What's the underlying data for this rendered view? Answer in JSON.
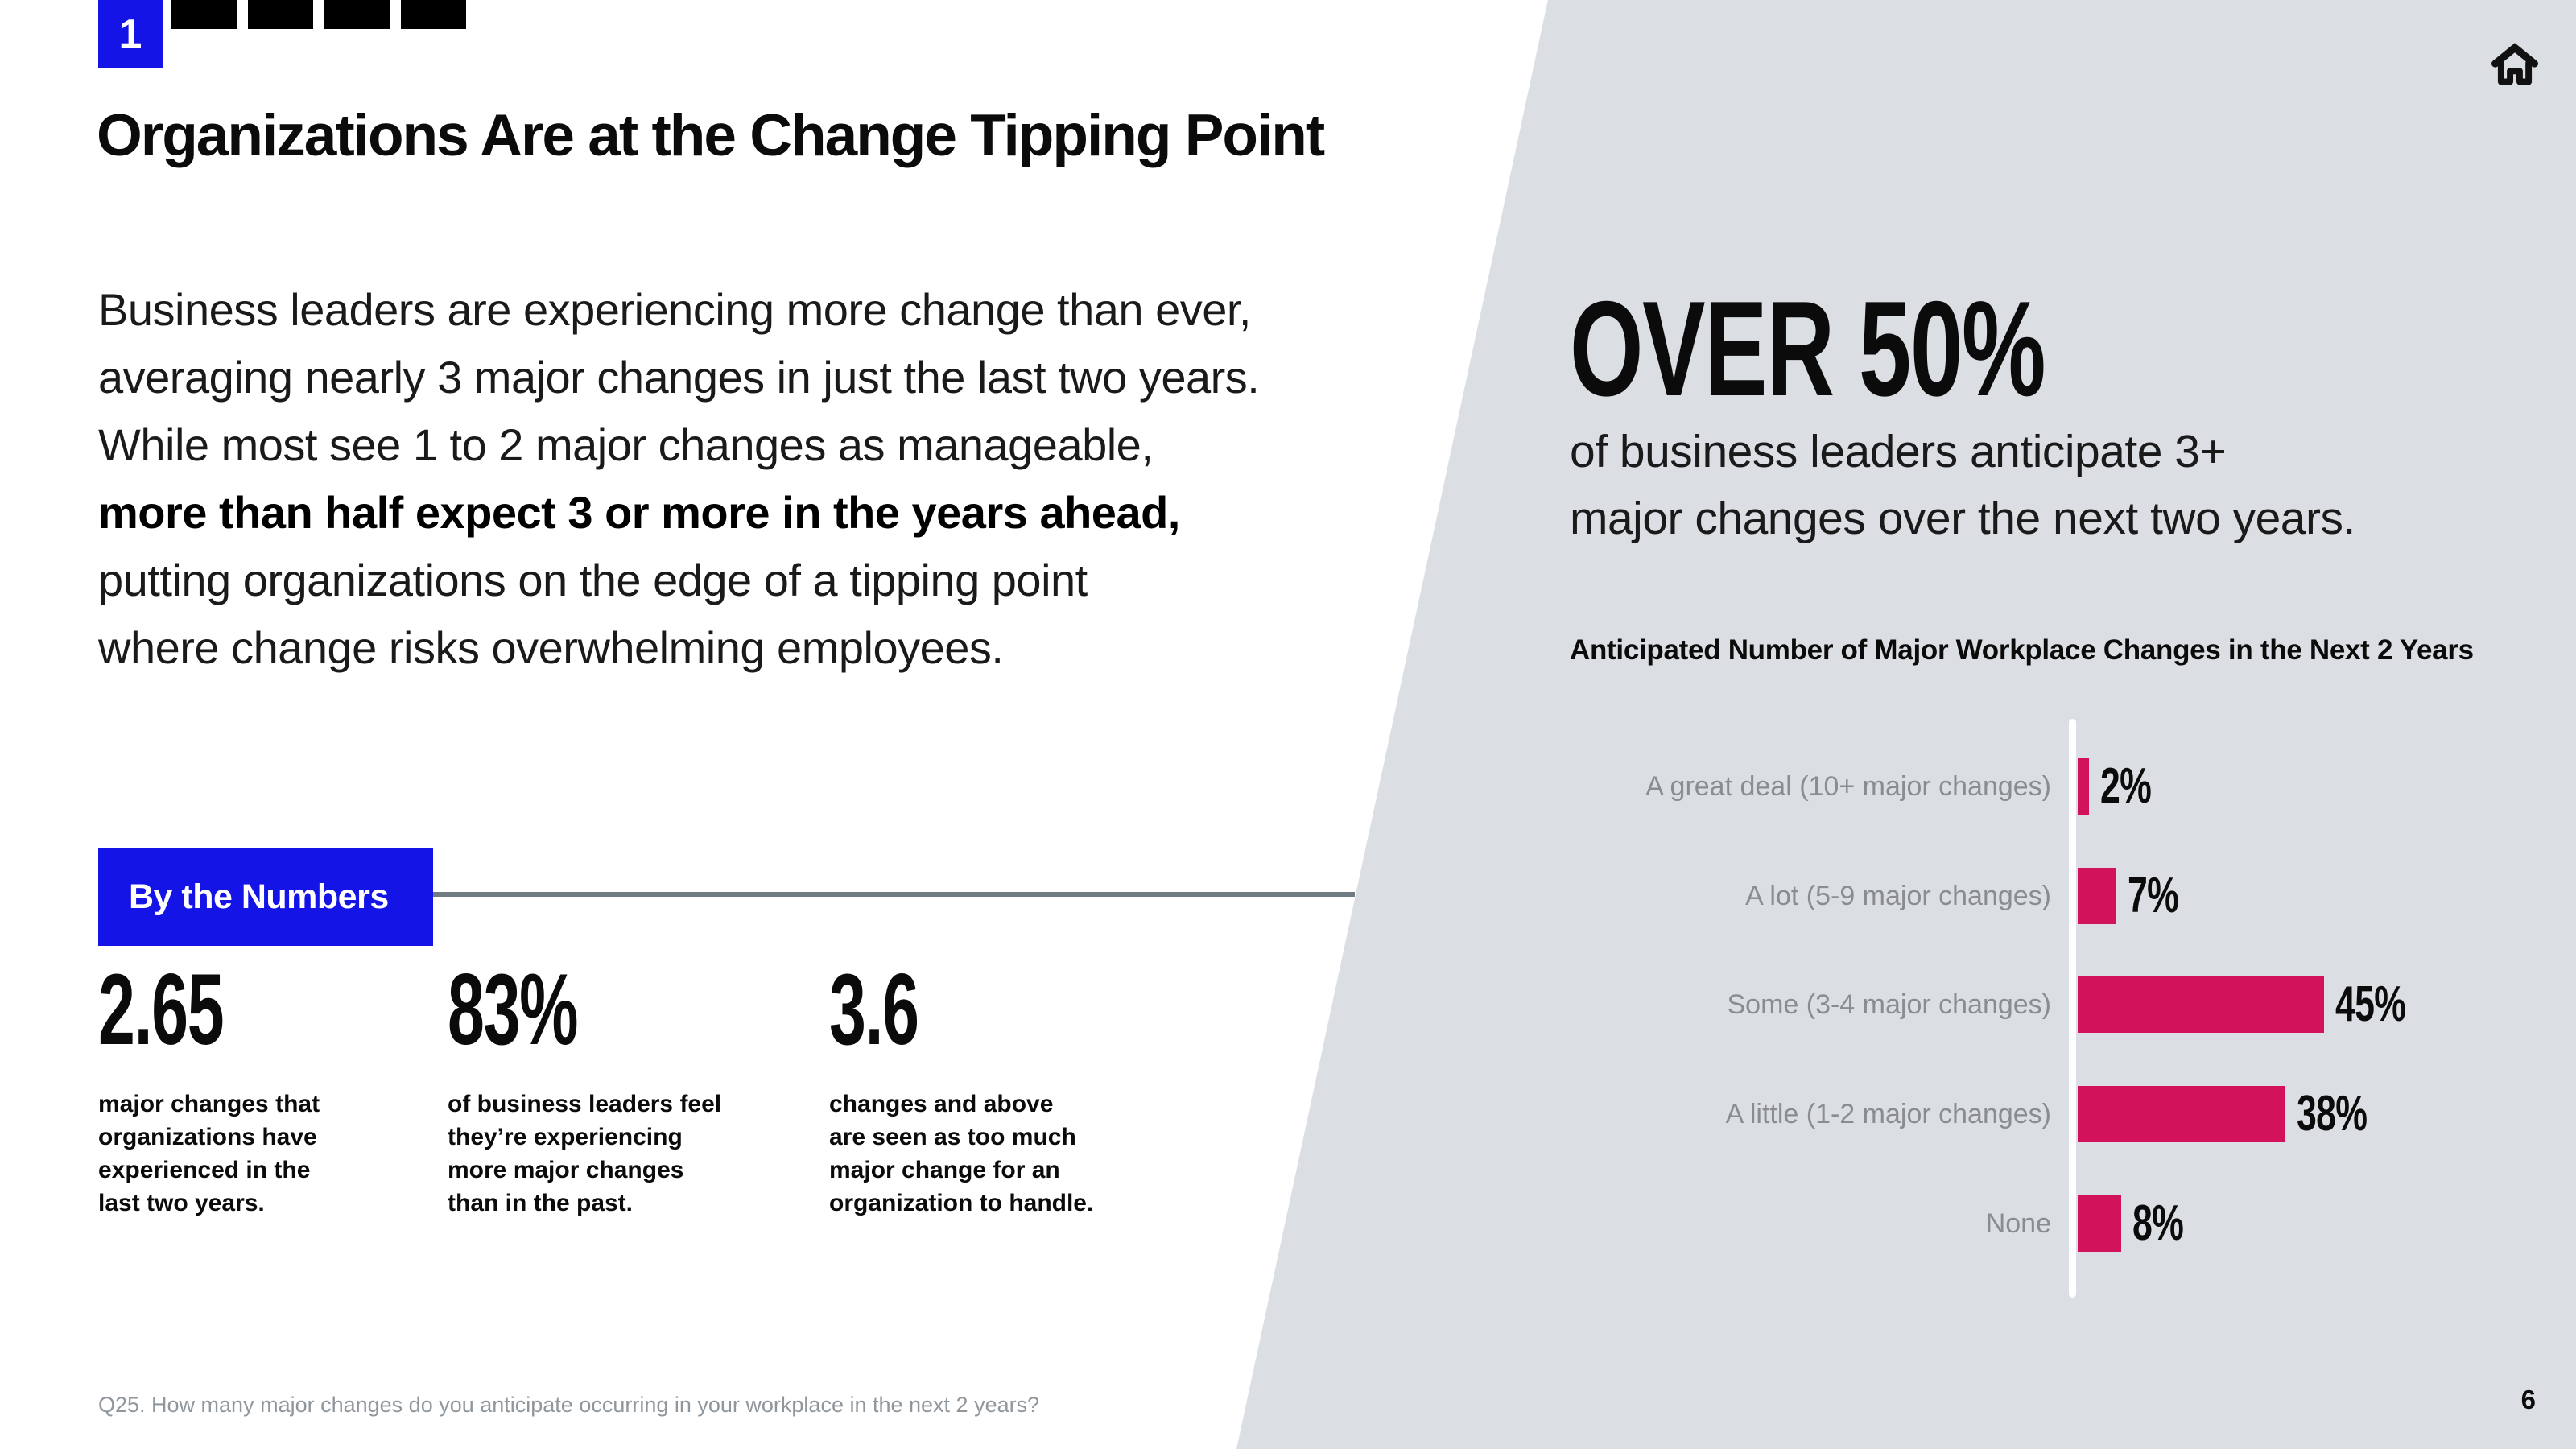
{
  "header": {
    "chapter_number": "1",
    "square_count": 4,
    "title": "Organizations Are at the Change Tipping Point"
  },
  "intro": {
    "lines": [
      {
        "text": "Business leaders are experiencing more change than ever,",
        "bold": false
      },
      {
        "text": "averaging nearly 3 major changes in just the last two years.",
        "bold": false
      },
      {
        "text": "While most see 1 to 2 major changes as manageable,",
        "bold": false
      },
      {
        "text": "more than half expect 3 or more in the years ahead,",
        "bold": true
      },
      {
        "text": "putting organizations on the edge of a tipping point",
        "bold": false
      },
      {
        "text": "where change risks overwhelming employees.",
        "bold": false
      }
    ]
  },
  "by_the_numbers": {
    "label": "By the Numbers",
    "stats": [
      {
        "value": "2.65",
        "lines": [
          "major changes that",
          "organizations have",
          "experienced in the",
          "last two years."
        ]
      },
      {
        "value": "83%",
        "lines": [
          "of business leaders feel",
          "they’re experiencing",
          "more major changes",
          "than in the past."
        ]
      },
      {
        "value": "3.6",
        "lines": [
          "changes and above",
          "are seen as too much",
          "major change for an",
          "organization to handle."
        ]
      }
    ]
  },
  "highlight": {
    "headline": "OVER 50%",
    "sub_lines": [
      "of business leaders anticipate 3+",
      "major changes over the next two years."
    ]
  },
  "chart_data": {
    "type": "bar",
    "orientation": "horizontal",
    "title": "Anticipated Number of Major Workplace Changes in the Next 2 Years",
    "categories": [
      "A great deal (10+ major changes)",
      "A lot (5-9 major changes)",
      "Some (3-4 major changes)",
      "A little (1-2 major changes)",
      "None"
    ],
    "values": [
      2,
      7,
      45,
      38,
      8
    ],
    "value_labels": [
      "2%",
      "7%",
      "45%",
      "38%",
      "8%"
    ],
    "unit": "%",
    "xlim": [
      0,
      50
    ],
    "bar_color": "#D3125C",
    "axis_color": "#ffffff",
    "label_color": "#8A8D90",
    "grid": false,
    "legend": false
  },
  "footnote": "Q25. How many major changes do you anticipate occurring in your workplace in the next 2 years?",
  "page_number": "6",
  "colors": {
    "accent_blue": "#1414E6",
    "accent_pink": "#D3125C",
    "panel_gray": "#DBDEE2",
    "rule_gray": "#6F7C83"
  },
  "icons": {
    "home": "home-icon"
  }
}
